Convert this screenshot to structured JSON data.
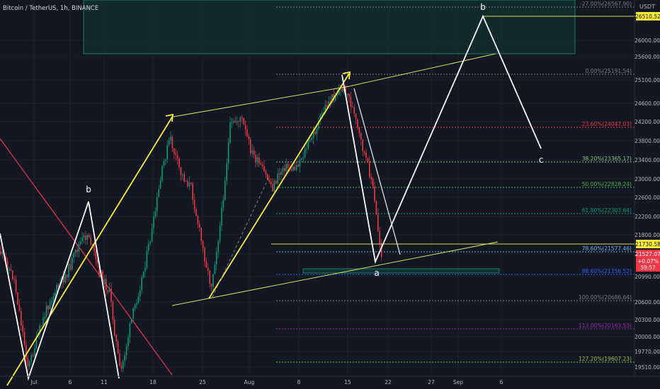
{
  "header": {
    "symbol_label": "Bitcoin / TetherUS, 1h, BINANCE"
  },
  "price_axis": {
    "currency": "USDT",
    "ticks": [
      "26000.00",
      "25600.00",
      "25100.00",
      "24600.00",
      "24200.00",
      "23800.00",
      "23400.00",
      "23000.00",
      "22600.00",
      "22200.00",
      "21800.00",
      "21400.00",
      "20990.00",
      "20600.00",
      "20300.00",
      "20000.00",
      "19770.00",
      "19510.00"
    ],
    "target_badge": "26510.52",
    "resistance_badge": "21730.58",
    "last_price": {
      "price": "21527.07",
      "change": "+0.07%",
      "countdown": "59:57"
    }
  },
  "time_axis": {
    "ticks": [
      "Jul",
      "6",
      "11",
      "18",
      "25",
      "Aug",
      "8",
      "15",
      "22",
      "27",
      "Sep",
      "6"
    ]
  },
  "fib_levels": [
    {
      "label": "-27.00%(26567.90)",
      "color": "#787b86"
    },
    {
      "label": "0.00%(25191.54)",
      "color": "#787b86"
    },
    {
      "label": "23.60%(24047.03)",
      "color": "#f23645"
    },
    {
      "label": "38.20%(23365.17)",
      "color": "#81c784"
    },
    {
      "label": "50.00%(22828.24)",
      "color": "#4caf50"
    },
    {
      "label": "61.80%(22303.64)",
      "color": "#089981"
    },
    {
      "label": "78.60%(21577.46)",
      "color": "#64b5f6"
    },
    {
      "label": "88.60%(21156.52)",
      "color": "#2962ff"
    },
    {
      "label": "100.00%(20686.64)",
      "color": "#787b86"
    },
    {
      "label": "113.00%(20163.53)",
      "color": "#9c27b0"
    },
    {
      "label": "127.20%(19607.23)",
      "color": "#8bc34a"
    }
  ],
  "wave_labels": {
    "b_left": "b",
    "b_right": "b",
    "a": "a",
    "c": "c"
  },
  "colors": {
    "bull": "#089981",
    "bear": "#f23645",
    "wave": "#ffffff",
    "trend": "#ffeb3b",
    "channel": "#d4e157",
    "zone": "#0e3b36",
    "zone_border": "#1f7a6d"
  },
  "chart_data": {
    "type": "candlestick",
    "symbol": "Bitcoin / TetherUS",
    "interval": "1h",
    "exchange": "BINANCE",
    "y_unit": "USDT",
    "ylim": [
      19400,
      26800
    ],
    "fibonacci_retracement": [
      {
        "ratio": -0.27,
        "price": 26567.9
      },
      {
        "ratio": 0.0,
        "price": 25191.54
      },
      {
        "ratio": 0.236,
        "price": 24047.03
      },
      {
        "ratio": 0.382,
        "price": 23365.17
      },
      {
        "ratio": 0.5,
        "price": 22828.24
      },
      {
        "ratio": 0.618,
        "price": 22303.64
      },
      {
        "ratio": 0.786,
        "price": 21577.46
      },
      {
        "ratio": 0.886,
        "price": 21156.52
      },
      {
        "ratio": 1.0,
        "price": 20686.64
      },
      {
        "ratio": 1.13,
        "price": 20163.53
      },
      {
        "ratio": 1.272,
        "price": 19607.23
      }
    ],
    "last_price": 21527.07,
    "change_percent": 0.07,
    "projected_target": 26510.52,
    "resistance": 21730.58,
    "projection_path_labels": [
      "a",
      "b",
      "c"
    ]
  }
}
